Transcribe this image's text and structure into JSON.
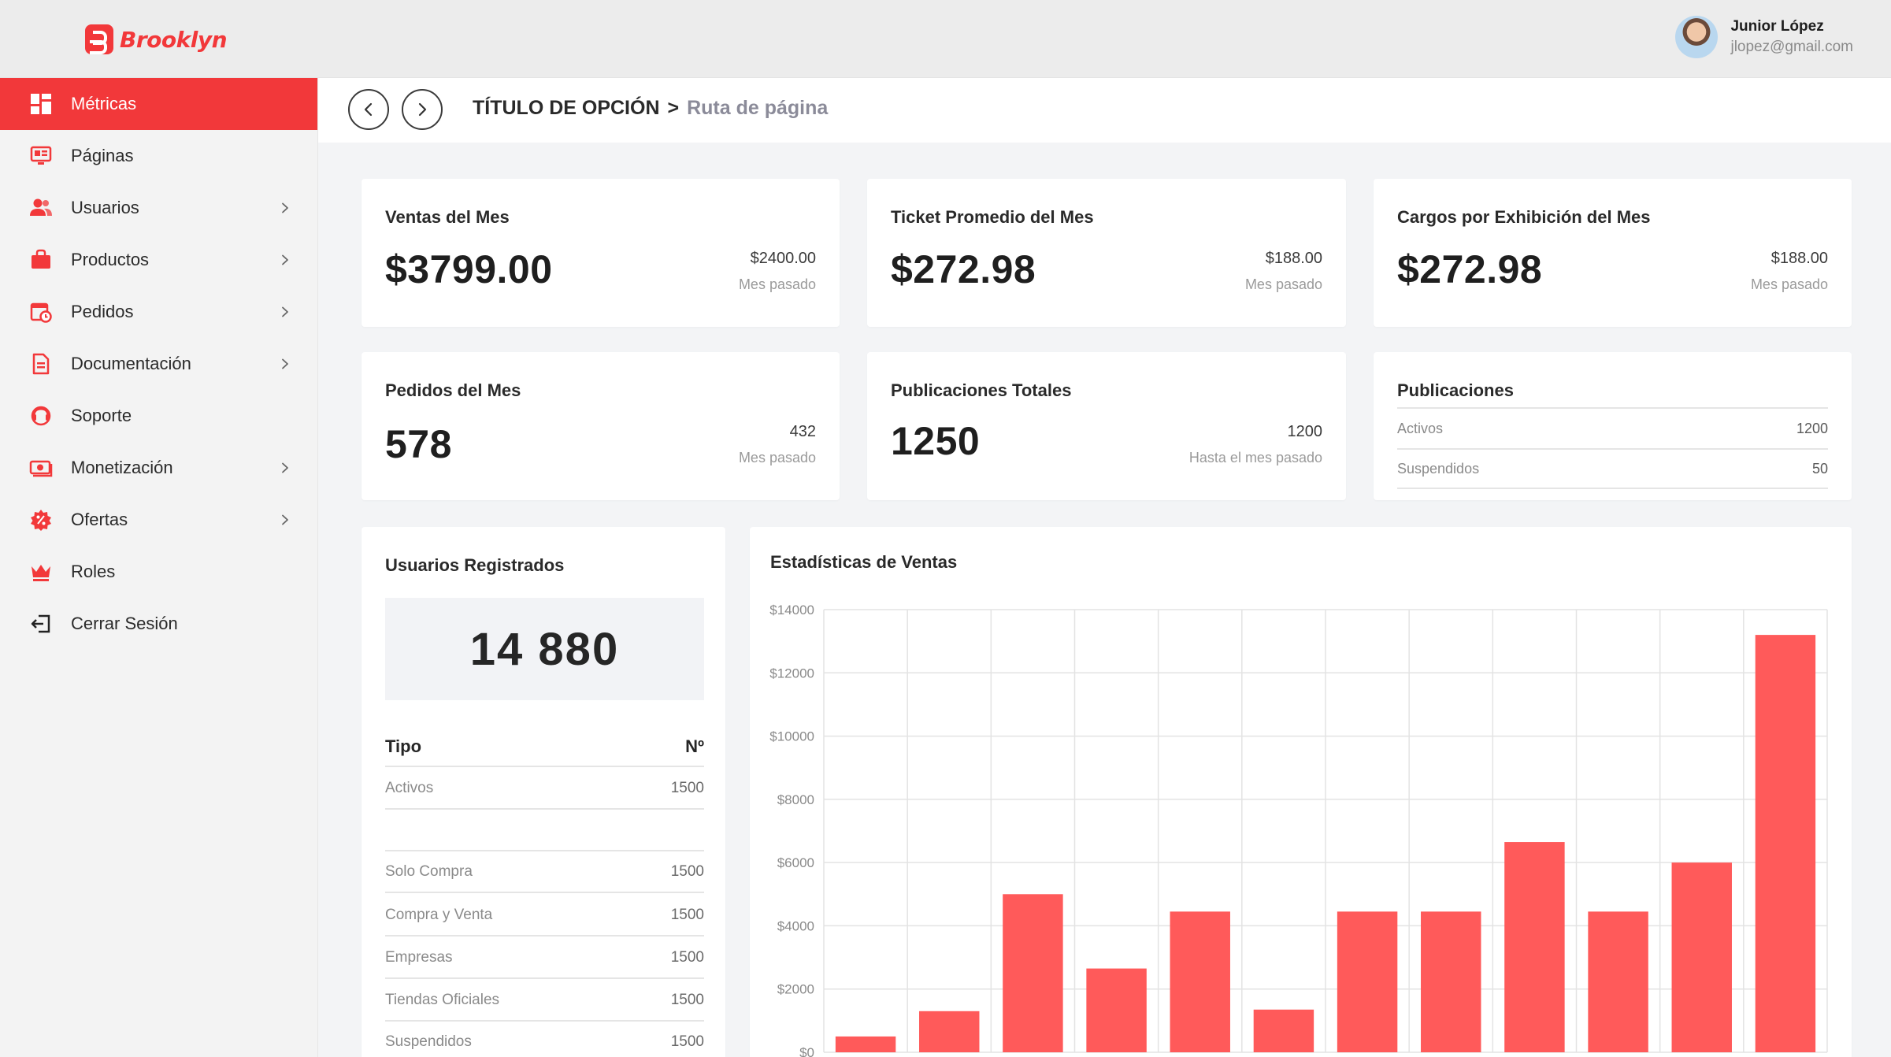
{
  "brand": {
    "name": "Brooklyn",
    "color": "#f2383a"
  },
  "user": {
    "name": "Junior López",
    "email": "jlopez@gmail.com"
  },
  "breadcrumb": {
    "title": "TÍTULO DE OPCIÓN",
    "separator": ">",
    "path": "Ruta de página"
  },
  "sidebar": {
    "items": [
      {
        "label": "Métricas",
        "icon": "dashboard-icon",
        "active": true,
        "chevron": false
      },
      {
        "label": "Páginas",
        "icon": "pages-icon",
        "active": false,
        "chevron": false
      },
      {
        "label": "Usuarios",
        "icon": "users-icon",
        "active": false,
        "chevron": true
      },
      {
        "label": "Productos",
        "icon": "bag-icon",
        "active": false,
        "chevron": true
      },
      {
        "label": "Pedidos",
        "icon": "orders-icon",
        "active": false,
        "chevron": true
      },
      {
        "label": "Documentación",
        "icon": "document-icon",
        "active": false,
        "chevron": true
      },
      {
        "label": "Soporte",
        "icon": "support-icon",
        "active": false,
        "chevron": false
      },
      {
        "label": "Monetización",
        "icon": "money-icon",
        "active": false,
        "chevron": true
      },
      {
        "label": "Ofertas",
        "icon": "discount-icon",
        "active": false,
        "chevron": true
      },
      {
        "label": "Roles",
        "icon": "crown-icon",
        "active": false,
        "chevron": false
      },
      {
        "label": "Cerrar Sesión",
        "icon": "logout-icon",
        "active": false,
        "chevron": false
      }
    ]
  },
  "stats": {
    "ventas": {
      "title": "Ventas del Mes",
      "value": "$3799.00",
      "prev": "$2400.00",
      "prev_label": "Mes pasado"
    },
    "ticket": {
      "title": "Ticket Promedio del Mes",
      "value": "$272.98",
      "prev": "$188.00",
      "prev_label": "Mes pasado"
    },
    "cargos": {
      "title": "Cargos por Exhibición del Mes",
      "value": "$272.98",
      "prev": "$188.00",
      "prev_label": "Mes pasado"
    },
    "pedidos": {
      "title": "Pedidos del Mes",
      "value": "578",
      "prev": "432",
      "prev_label": "Mes pasado"
    },
    "publicaciones_totales": {
      "title": "Publicaciones Totales",
      "value": "1250",
      "prev": "1200",
      "prev_label": "Hasta el mes pasado"
    },
    "publicaciones": {
      "title": "Publicaciones",
      "rows": [
        {
          "label": "Activos",
          "value": "1200"
        },
        {
          "label": "Suspendidos",
          "value": "50"
        }
      ]
    }
  },
  "usuarios": {
    "title": "Usuarios Registrados",
    "total": "14 880",
    "col_tipo": "Tipo",
    "col_num": "Nº",
    "rows": [
      {
        "label": "Activos",
        "value": "1500"
      },
      {
        "label": "",
        "value": ""
      },
      {
        "label": "Solo Compra",
        "value": "1500"
      },
      {
        "label": "Compra y Venta",
        "value": "1500"
      },
      {
        "label": "Empresas",
        "value": "1500"
      },
      {
        "label": "Tiendas Oficiales",
        "value": "1500"
      },
      {
        "label": "Suspendidos",
        "value": "1500"
      }
    ]
  },
  "chart_data": {
    "type": "bar",
    "title": "Estadísticas de Ventas",
    "bar_color": "#ff5a5a",
    "grid": true,
    "ylim": [
      0,
      14000
    ],
    "yticks": [
      "$0",
      "$2000",
      "$4000",
      "$6000",
      "$8000",
      "$10000",
      "$12000",
      "$14000"
    ],
    "values": [
      500,
      1300,
      5000,
      2650,
      4450,
      1350,
      4450,
      4450,
      6650,
      4450,
      6000,
      13200
    ]
  }
}
